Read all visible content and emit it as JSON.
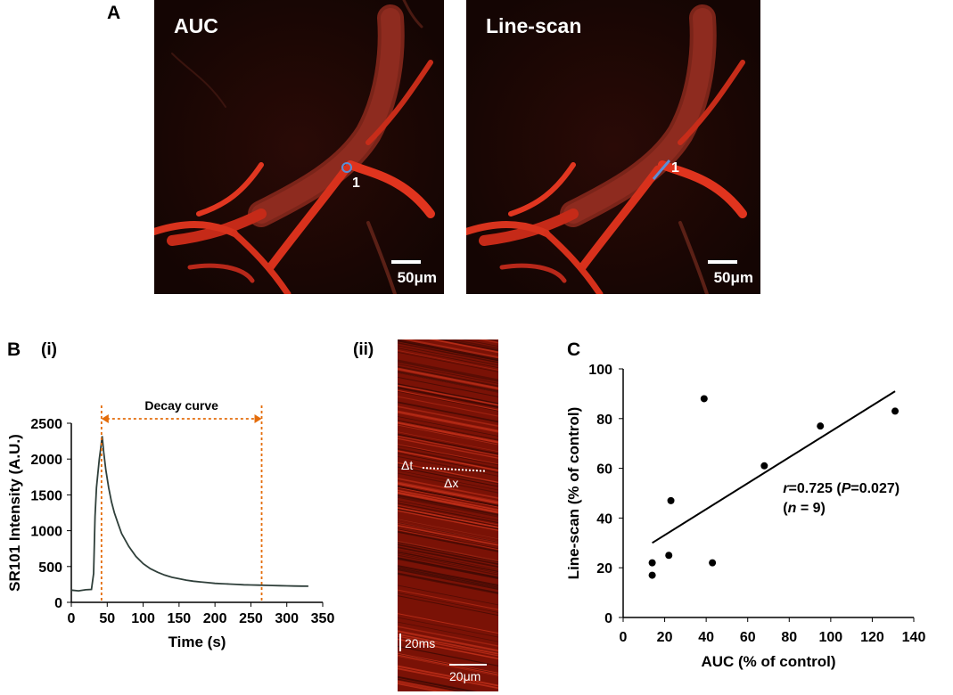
{
  "figure": {
    "panel_a_letter": "A",
    "panel_b_letter": "B",
    "panel_b_i": "(i)",
    "panel_b_ii": "(ii)",
    "panel_c_letter": "C"
  },
  "panel_a": {
    "left_image": {
      "title": "AUC",
      "roi_label": "1",
      "scale_label": "50μm"
    },
    "right_image": {
      "title": "Line-scan",
      "roi_label": "1",
      "scale_label": "50μm"
    },
    "vessel_color": "#e8321e",
    "roi_marker_color": "#5a8fd6"
  },
  "panel_b_ii": {
    "delta_t": "Δt",
    "delta_x": "Δx",
    "time_scale": "20ms",
    "space_scale": "20μm"
  },
  "chart_data": [
    {
      "type": "line",
      "xlabel": "Time (s)",
      "ylabel": "SR101 Intensity (A.U.)",
      "xlim": [
        0,
        350
      ],
      "ylim": [
        0,
        2500
      ],
      "xticks": [
        0,
        50,
        100,
        150,
        200,
        250,
        300,
        350
      ],
      "yticks": [
        0,
        500,
        1000,
        1500,
        2000,
        2500
      ],
      "annotation": "Decay curve",
      "decay_start_x": 42,
      "decay_end_x": 265,
      "line_color": "#2f3f3a",
      "annotation_color": "#e46c0a",
      "series": [
        {
          "x": [
            0,
            10,
            20,
            28,
            31,
            33,
            35,
            37,
            39,
            41,
            43,
            45,
            48,
            52,
            56,
            60,
            65,
            70,
            80,
            90,
            100,
            110,
            120,
            130,
            140,
            150,
            160,
            170,
            180,
            190,
            200,
            210,
            220,
            230,
            240,
            250,
            260,
            270,
            280,
            290,
            300,
            310,
            320,
            330
          ],
          "y": [
            170,
            160,
            175,
            180,
            400,
            1200,
            1600,
            1800,
            2000,
            2150,
            2320,
            2100,
            1850,
            1600,
            1400,
            1250,
            1100,
            960,
            780,
            640,
            540,
            470,
            420,
            380,
            350,
            330,
            310,
            295,
            285,
            275,
            265,
            260,
            255,
            250,
            245,
            242,
            240,
            238,
            235,
            232,
            230,
            228,
            226,
            225
          ]
        }
      ]
    },
    {
      "type": "scatter",
      "xlabel": "AUC (% of control)",
      "ylabel": "Line-scan (% of control)",
      "xlim": [
        0,
        140
      ],
      "ylim": [
        0,
        100
      ],
      "xticks": [
        0,
        20,
        40,
        60,
        80,
        100,
        120,
        140
      ],
      "yticks": [
        0,
        20,
        40,
        60,
        80,
        100
      ],
      "annotation_line1_italic": "r",
      "annotation_line1_a": "=0.725 (",
      "annotation_line1_italic2": "P",
      "annotation_line1_b": "=0.027)",
      "annotation_line2_a": "(",
      "annotation_line2_italic": "n",
      "annotation_line2_b": " = 9)",
      "points": [
        {
          "x": 14,
          "y": 17
        },
        {
          "x": 14,
          "y": 22
        },
        {
          "x": 22,
          "y": 25
        },
        {
          "x": 23,
          "y": 47
        },
        {
          "x": 39,
          "y": 88
        },
        {
          "x": 43,
          "y": 22
        },
        {
          "x": 68,
          "y": 61
        },
        {
          "x": 95,
          "y": 77
        },
        {
          "x": 131,
          "y": 83
        }
      ],
      "fit_line": {
        "x": [
          14,
          131
        ],
        "y": [
          30,
          91
        ]
      }
    }
  ]
}
